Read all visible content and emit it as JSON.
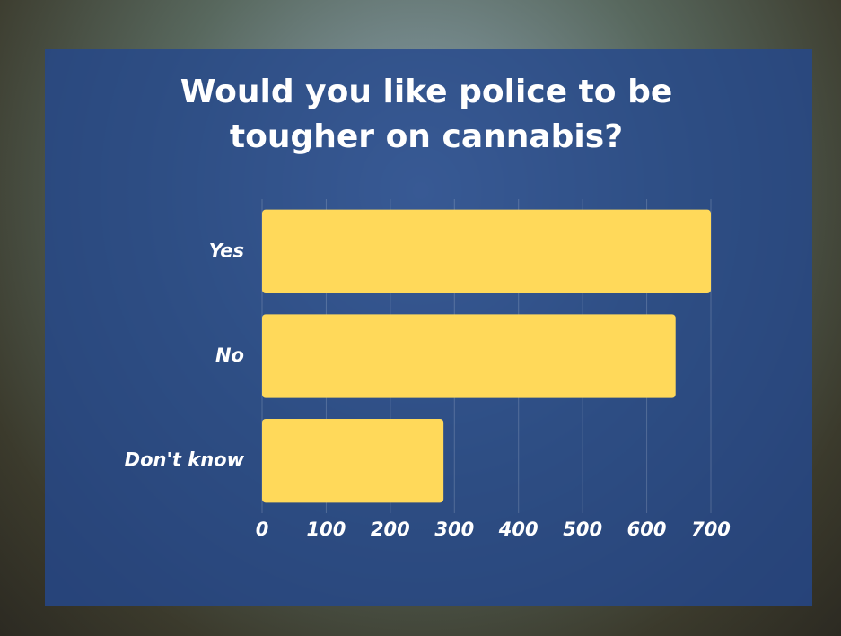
{
  "chart_data": {
    "type": "bar",
    "orientation": "horizontal",
    "title": "Would you like police to be tougher on cannabis?",
    "categories": [
      "Yes",
      "No",
      "Don't know"
    ],
    "values": [
      700,
      645,
      283
    ],
    "color": "#ffd95a",
    "xlim": [
      0,
      700
    ],
    "xticks": [
      0,
      100,
      200,
      300,
      400,
      500,
      600,
      700
    ],
    "grid": true
  }
}
